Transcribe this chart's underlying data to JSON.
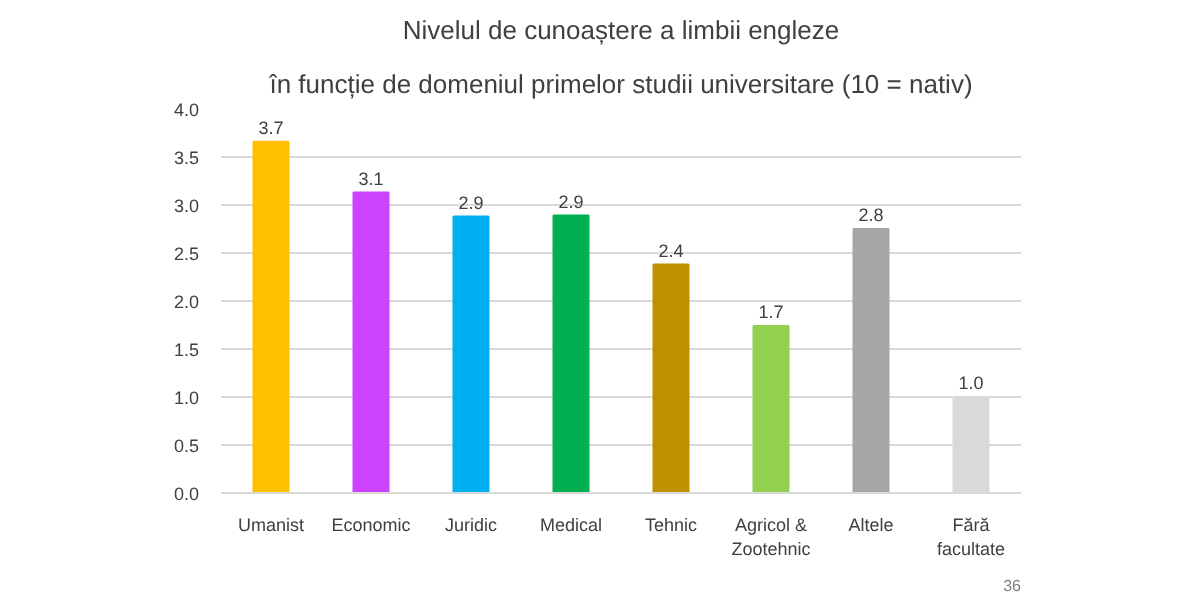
{
  "chart_data": {
    "type": "bar",
    "title": "Nivelul de cunoaștere a limbii engleze",
    "subtitle": "în funcție de domeniul primelor studii universitare (10 = nativ)",
    "categories": [
      "Umanist",
      "Economic",
      "Juridic",
      "Medical",
      "Tehnic",
      "Agricol & Zootehnic",
      "Altele",
      "Fără facultate"
    ],
    "values": [
      3.66,
      3.13,
      2.88,
      2.89,
      2.38,
      1.74,
      2.75,
      1.0
    ],
    "value_labels": [
      "3.7",
      "3.1",
      "2.9",
      "2.9",
      "2.4",
      "1.7",
      "2.8",
      "1.0"
    ],
    "colors": [
      "#ffc000",
      "#cc44ff",
      "#00b0f0",
      "#00b050",
      "#bf9000",
      "#92d050",
      "#a6a6a6",
      "#d9d9d9"
    ],
    "ylim": [
      0,
      4
    ],
    "yticks": [
      {
        "value": 0,
        "label": "0.0"
      },
      0.5,
      {
        "value": 1,
        "label": "1.0"
      },
      1.5,
      {
        "value": 2,
        "label": "2.0"
      },
      2.5,
      {
        "value": 3,
        "label": "3.0"
      },
      3.5,
      {
        "value": 4,
        "label": "4.0"
      }
    ],
    "grid": "y",
    "annotations": [
      "36"
    ]
  }
}
